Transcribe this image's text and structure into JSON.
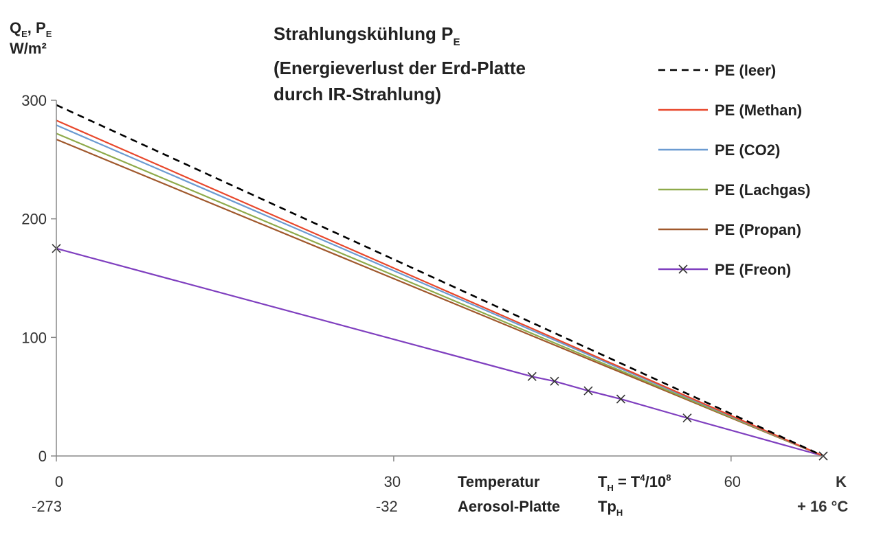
{
  "chart_data": {
    "type": "line",
    "title": {
      "main": "Strahlungskühlung P",
      "main_sub": "E",
      "line2": "(Energieverlust der Erd-Platte",
      "line3": "durch IR-Strahlung)"
    },
    "ylabel": {
      "q": "Q",
      "q_sub": "E",
      "comma": ", P",
      "p_sub": "E",
      "unit": "W/m²"
    },
    "y_ticks": [
      "0",
      "100",
      "200",
      "300"
    ],
    "ylim": [
      0,
      300
    ],
    "xlim": [
      0,
      68.2
    ],
    "x_ticks_top": [
      "0",
      "30",
      "60",
      "K"
    ],
    "x_ticks_bottom": [
      "-273",
      "-32",
      "+ 16 °C"
    ],
    "x_axis_text": {
      "temp": "Temperatur",
      "plate": "Aerosol-Platte",
      "th_prefix": "T",
      "th_sub": "H",
      "th_eq": " = T",
      "th_sup": "4",
      "th_div": "/10",
      "th_sup2": "8",
      "tph": "Tp",
      "tph_sub": "H"
    },
    "grid": false,
    "legend_position": "right",
    "series": [
      {
        "name": "PE (leer)",
        "color": "#000000",
        "dash": true,
        "marker": false,
        "x": [
          0,
          68.2
        ],
        "y": [
          296,
          0
        ]
      },
      {
        "name": "PE (Methan)",
        "color": "#e8472b",
        "dash": false,
        "marker": false,
        "x": [
          0,
          68.2
        ],
        "y": [
          283,
          0
        ]
      },
      {
        "name": "PE (CO2)",
        "color": "#6b9bd1",
        "dash": false,
        "marker": false,
        "x": [
          0,
          68.2
        ],
        "y": [
          279,
          0
        ]
      },
      {
        "name": "PE (Lachgas)",
        "color": "#8eaa4a",
        "dash": false,
        "marker": false,
        "x": [
          0,
          68.2
        ],
        "y": [
          272,
          0
        ]
      },
      {
        "name": "PE (Propan)",
        "color": "#a0582c",
        "dash": false,
        "marker": false,
        "x": [
          0,
          68.2
        ],
        "y": [
          267,
          0
        ]
      },
      {
        "name": "PE (Freon)",
        "color": "#7f3fbf",
        "dash": false,
        "marker": true,
        "x": [
          0,
          42.3,
          44.3,
          47.3,
          50.2,
          56.1,
          68.2
        ],
        "y": [
          175,
          67,
          63,
          55,
          48,
          32,
          0
        ]
      }
    ]
  }
}
